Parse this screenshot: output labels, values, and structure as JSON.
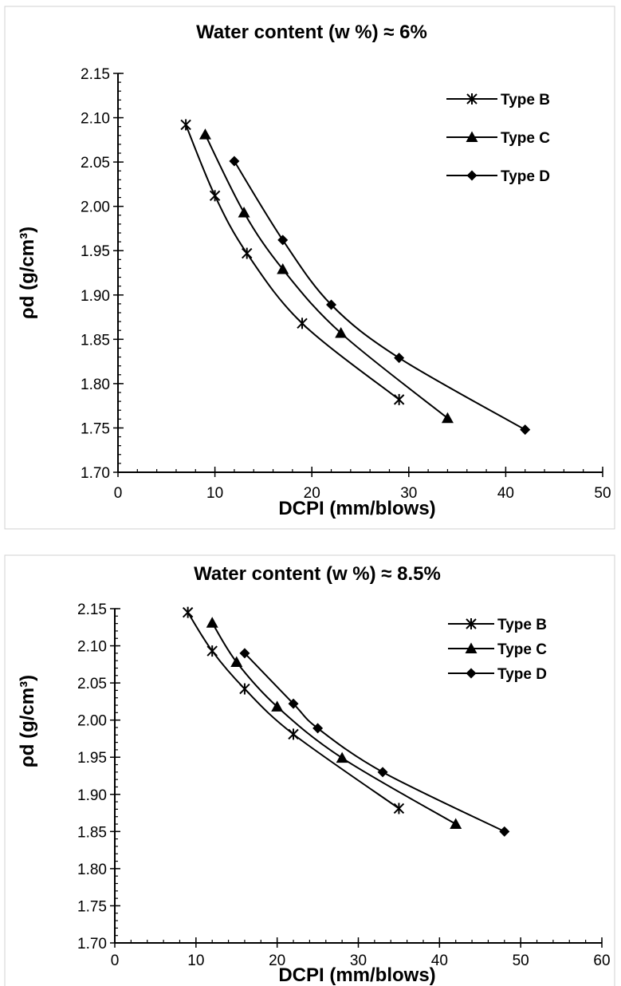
{
  "chart_data": [
    {
      "type": "line",
      "title": "Water content (w %) ≈ 6%",
      "xlabel": "DCPI (mm/blows)",
      "ylabel": "ρd (g/cm³)",
      "xlim": [
        0,
        50
      ],
      "ylim": [
        1.7,
        2.15
      ],
      "x_ticks": [
        "0",
        "10",
        "20",
        "30",
        "40",
        "50"
      ],
      "y_ticks": [
        "1.70",
        "1.75",
        "1.80",
        "1.85",
        "1.90",
        "1.95",
        "2.00",
        "2.05",
        "2.10",
        "2.15"
      ],
      "grid": false,
      "legend": "top-right",
      "series": [
        {
          "name": "Type B",
          "marker": "asterisk",
          "color": "#000000",
          "x": [
            7,
            10,
            13.3,
            19,
            29
          ],
          "y": [
            2.092,
            2.012,
            1.947,
            1.868,
            1.782
          ]
        },
        {
          "name": "Type C",
          "marker": "triangle",
          "color": "#000000",
          "x": [
            9,
            13,
            17,
            23,
            34
          ],
          "y": [
            2.081,
            1.993,
            1.929,
            1.857,
            1.761
          ]
        },
        {
          "name": "Type D",
          "marker": "diamond",
          "color": "#000000",
          "x": [
            12,
            17,
            22,
            29,
            42
          ],
          "y": [
            2.051,
            1.962,
            1.889,
            1.829,
            1.748
          ]
        }
      ]
    },
    {
      "type": "line",
      "title": "Water content (w %) ≈ 8.5%",
      "xlabel": "DCPI (mm/blows)",
      "ylabel": "ρd (g/cm³)",
      "xlim": [
        0,
        60
      ],
      "ylim": [
        1.7,
        2.15
      ],
      "x_ticks": [
        "0",
        "10",
        "20",
        "30",
        "40",
        "50",
        "60"
      ],
      "y_ticks": [
        "1.70",
        "1.75",
        "1.80",
        "1.85",
        "1.90",
        "1.95",
        "2.00",
        "2.05",
        "2.10",
        "2.15"
      ],
      "grid": false,
      "legend": "top-right",
      "series": [
        {
          "name": "Type B",
          "marker": "asterisk",
          "color": "#000000",
          "x": [
            9,
            12,
            16,
            22,
            35
          ],
          "y": [
            2.145,
            2.093,
            2.042,
            1.981,
            1.881
          ]
        },
        {
          "name": "Type C",
          "marker": "triangle",
          "color": "#000000",
          "x": [
            12,
            15,
            20,
            28,
            42
          ],
          "y": [
            2.131,
            2.078,
            2.018,
            1.949,
            1.86
          ]
        },
        {
          "name": "Type D",
          "marker": "diamond",
          "color": "#000000",
          "x": [
            16,
            22,
            25,
            33,
            48
          ],
          "y": [
            2.09,
            2.022,
            1.989,
            1.93,
            1.85
          ]
        }
      ]
    }
  ]
}
